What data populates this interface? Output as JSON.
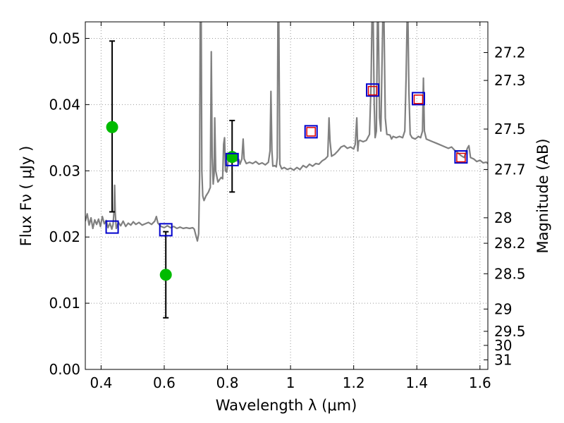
{
  "chart_data": {
    "type": "scatter",
    "xlabel": "Wavelength  λ (μm)",
    "ylabel": "Flux  Fν  ( μJy )",
    "ylabel_right": "Magnitude (AB)",
    "xlim": [
      0.35,
      1.625
    ],
    "ylim": [
      0.0,
      0.0525
    ],
    "x_ticks": [
      0.4,
      0.6,
      0.8,
      1.0,
      1.2,
      1.4,
      1.6
    ],
    "x_tick_labels": [
      "0.4",
      "0.6",
      "0.8",
      "1",
      "1.2",
      "1.4",
      "1.6"
    ],
    "y_ticks": [
      0.0,
      0.01,
      0.02,
      0.03,
      0.04,
      0.05
    ],
    "y_tick_labels": [
      "0.00",
      "0.01",
      "0.02",
      "0.03",
      "0.04",
      "0.05"
    ],
    "mag_ticks": [
      27.2,
      27.3,
      27.5,
      27.7,
      28,
      28.2,
      28.5,
      29,
      29.5,
      30,
      31
    ],
    "mag_tick_labels": [
      "27.2",
      "27.3",
      "27.5",
      "27.7",
      "28",
      "28.2",
      "28.5",
      "29",
      "29.5",
      "30",
      "31"
    ],
    "grid": true,
    "colors": {
      "spectrum": "#808080",
      "observed": "#00bb00",
      "errorbar": "#000000",
      "model_blue": "#0000cc",
      "model_red": "#dd0000"
    },
    "series": [
      {
        "kind": "line",
        "points": [
          [
            0.35,
            0.0224
          ],
          [
            0.356,
            0.0235
          ],
          [
            0.362,
            0.0218
          ],
          [
            0.368,
            0.0229
          ],
          [
            0.374,
            0.0213
          ],
          [
            0.38,
            0.0226
          ],
          [
            0.386,
            0.0219
          ],
          [
            0.392,
            0.0227
          ],
          [
            0.398,
            0.0216
          ],
          [
            0.404,
            0.0231
          ],
          [
            0.41,
            0.022
          ],
          [
            0.416,
            0.0225
          ],
          [
            0.422,
            0.0214
          ],
          [
            0.428,
            0.0221
          ],
          [
            0.434,
            0.0212
          ],
          [
            0.438,
            0.0219
          ],
          [
            0.441,
            0.024
          ],
          [
            0.443,
            0.0278
          ],
          [
            0.445,
            0.0236
          ],
          [
            0.448,
            0.0213
          ],
          [
            0.455,
            0.0222
          ],
          [
            0.462,
            0.0217
          ],
          [
            0.47,
            0.0224
          ],
          [
            0.478,
            0.0216
          ],
          [
            0.486,
            0.0221
          ],
          [
            0.494,
            0.0218
          ],
          [
            0.502,
            0.0223
          ],
          [
            0.51,
            0.0219
          ],
          [
            0.52,
            0.0222
          ],
          [
            0.53,
            0.0218
          ],
          [
            0.54,
            0.022
          ],
          [
            0.55,
            0.0222
          ],
          [
            0.56,
            0.0219
          ],
          [
            0.57,
            0.0224
          ],
          [
            0.575,
            0.0231
          ],
          [
            0.58,
            0.0221
          ],
          [
            0.59,
            0.0216
          ],
          [
            0.6,
            0.0214
          ],
          [
            0.61,
            0.0217
          ],
          [
            0.62,
            0.0214
          ],
          [
            0.63,
            0.0216
          ],
          [
            0.64,
            0.0213
          ],
          [
            0.65,
            0.0215
          ],
          [
            0.66,
            0.0213
          ],
          [
            0.67,
            0.0214
          ],
          [
            0.68,
            0.0213
          ],
          [
            0.69,
            0.0214
          ],
          [
            0.695,
            0.0212
          ],
          [
            0.7,
            0.0203
          ],
          [
            0.705,
            0.0194
          ],
          [
            0.709,
            0.0205
          ],
          [
            0.712,
            0.029
          ],
          [
            0.714,
            0.0525
          ],
          [
            0.717,
            0.0525
          ],
          [
            0.719,
            0.03
          ],
          [
            0.722,
            0.0262
          ],
          [
            0.726,
            0.0255
          ],
          [
            0.732,
            0.0262
          ],
          [
            0.74,
            0.0268
          ],
          [
            0.746,
            0.0275
          ],
          [
            0.749,
            0.048
          ],
          [
            0.752,
            0.032
          ],
          [
            0.755,
            0.028
          ],
          [
            0.758,
            0.0295
          ],
          [
            0.76,
            0.038
          ],
          [
            0.763,
            0.03
          ],
          [
            0.77,
            0.0283
          ],
          [
            0.78,
            0.029
          ],
          [
            0.785,
            0.0288
          ],
          [
            0.788,
            0.034
          ],
          [
            0.791,
            0.035
          ],
          [
            0.794,
            0.03
          ],
          [
            0.798,
            0.0298
          ],
          [
            0.803,
            0.0318
          ],
          [
            0.807,
            0.0325
          ],
          [
            0.812,
            0.0318
          ],
          [
            0.82,
            0.0322
          ],
          [
            0.826,
            0.0325
          ],
          [
            0.83,
            0.0315
          ],
          [
            0.836,
            0.0317
          ],
          [
            0.84,
            0.031
          ],
          [
            0.846,
            0.0318
          ],
          [
            0.85,
            0.0348
          ],
          [
            0.853,
            0.0318
          ],
          [
            0.86,
            0.0311
          ],
          [
            0.87,
            0.0313
          ],
          [
            0.88,
            0.0311
          ],
          [
            0.89,
            0.0314
          ],
          [
            0.9,
            0.031
          ],
          [
            0.91,
            0.0312
          ],
          [
            0.92,
            0.0309
          ],
          [
            0.93,
            0.0313
          ],
          [
            0.935,
            0.033
          ],
          [
            0.938,
            0.042
          ],
          [
            0.941,
            0.033
          ],
          [
            0.944,
            0.0307
          ],
          [
            0.95,
            0.0308
          ],
          [
            0.955,
            0.0306
          ],
          [
            0.958,
            0.032
          ],
          [
            0.96,
            0.0525
          ],
          [
            0.963,
            0.0525
          ],
          [
            0.966,
            0.031
          ],
          [
            0.972,
            0.0303
          ],
          [
            0.98,
            0.0305
          ],
          [
            0.99,
            0.0302
          ],
          [
            1.0,
            0.0304
          ],
          [
            1.01,
            0.0301
          ],
          [
            1.02,
            0.0305
          ],
          [
            1.03,
            0.0302
          ],
          [
            1.04,
            0.0308
          ],
          [
            1.05,
            0.0305
          ],
          [
            1.06,
            0.031
          ],
          [
            1.07,
            0.0307
          ],
          [
            1.08,
            0.0311
          ],
          [
            1.09,
            0.031
          ],
          [
            1.1,
            0.0315
          ],
          [
            1.11,
            0.0318
          ],
          [
            1.118,
            0.0322
          ],
          [
            1.122,
            0.038
          ],
          [
            1.125,
            0.0345
          ],
          [
            1.13,
            0.0322
          ],
          [
            1.14,
            0.0325
          ],
          [
            1.15,
            0.033
          ],
          [
            1.16,
            0.0336
          ],
          [
            1.17,
            0.0338
          ],
          [
            1.18,
            0.0334
          ],
          [
            1.19,
            0.0336
          ],
          [
            1.2,
            0.0333
          ],
          [
            1.205,
            0.034
          ],
          [
            1.21,
            0.038
          ],
          [
            1.213,
            0.033
          ],
          [
            1.216,
            0.0345
          ],
          [
            1.22,
            0.0346
          ],
          [
            1.23,
            0.0344
          ],
          [
            1.24,
            0.0346
          ],
          [
            1.25,
            0.0355
          ],
          [
            1.255,
            0.043
          ],
          [
            1.258,
            0.0525
          ],
          [
            1.262,
            0.0525
          ],
          [
            1.265,
            0.04
          ],
          [
            1.268,
            0.035
          ],
          [
            1.272,
            0.036
          ],
          [
            1.275,
            0.0525
          ],
          [
            1.278,
            0.0525
          ],
          [
            1.282,
            0.038
          ],
          [
            1.286,
            0.036
          ],
          [
            1.292,
            0.0525
          ],
          [
            1.296,
            0.0525
          ],
          [
            1.3,
            0.038
          ],
          [
            1.305,
            0.0355
          ],
          [
            1.315,
            0.0354
          ],
          [
            1.32,
            0.0348
          ],
          [
            1.325,
            0.0352
          ],
          [
            1.335,
            0.035
          ],
          [
            1.345,
            0.0352
          ],
          [
            1.355,
            0.035
          ],
          [
            1.362,
            0.036
          ],
          [
            1.366,
            0.044
          ],
          [
            1.369,
            0.0525
          ],
          [
            1.372,
            0.0525
          ],
          [
            1.375,
            0.042
          ],
          [
            1.379,
            0.0355
          ],
          [
            1.385,
            0.035
          ],
          [
            1.395,
            0.0348
          ],
          [
            1.405,
            0.0352
          ],
          [
            1.412,
            0.035
          ],
          [
            1.418,
            0.036
          ],
          [
            1.421,
            0.044
          ],
          [
            1.424,
            0.036
          ],
          [
            1.43,
            0.0348
          ],
          [
            1.44,
            0.0346
          ],
          [
            1.45,
            0.0344
          ],
          [
            1.46,
            0.0342
          ],
          [
            1.47,
            0.034
          ],
          [
            1.48,
            0.0338
          ],
          [
            1.49,
            0.0336
          ],
          [
            1.5,
            0.0334
          ],
          [
            1.51,
            0.0336
          ],
          [
            1.52,
            0.0331
          ],
          [
            1.53,
            0.0327
          ],
          [
            1.54,
            0.0323
          ],
          [
            1.55,
            0.032
          ],
          [
            1.56,
            0.0334
          ],
          [
            1.565,
            0.0338
          ],
          [
            1.57,
            0.032
          ],
          [
            1.58,
            0.0318
          ],
          [
            1.59,
            0.0314
          ],
          [
            1.6,
            0.0316
          ],
          [
            1.61,
            0.0312
          ],
          [
            1.62,
            0.0313
          ],
          [
            1.625,
            0.0311
          ]
        ]
      },
      {
        "kind": "observed_points",
        "points": [
          {
            "x": 0.435,
            "y": 0.0366,
            "err_low": 0.0238,
            "err_high": 0.0496
          },
          {
            "x": 0.605,
            "y": 0.0143,
            "err_low": 0.0078,
            "err_high": 0.0208
          },
          {
            "x": 0.815,
            "y": 0.0321,
            "err_low": 0.0268,
            "err_high": 0.0376
          }
        ]
      },
      {
        "kind": "model_blue_squares",
        "points": [
          {
            "x": 0.435,
            "y": 0.0215
          },
          {
            "x": 0.605,
            "y": 0.0211
          },
          {
            "x": 0.815,
            "y": 0.0317
          },
          {
            "x": 1.065,
            "y": 0.0359
          },
          {
            "x": 1.26,
            "y": 0.0422
          },
          {
            "x": 1.405,
            "y": 0.0409
          },
          {
            "x": 1.54,
            "y": 0.0321
          }
        ]
      },
      {
        "kind": "model_red_squares",
        "points": [
          {
            "x": 1.065,
            "y": 0.0359
          },
          {
            "x": 1.26,
            "y": 0.0421
          },
          {
            "x": 1.405,
            "y": 0.0408
          },
          {
            "x": 1.54,
            "y": 0.032
          }
        ]
      }
    ]
  }
}
